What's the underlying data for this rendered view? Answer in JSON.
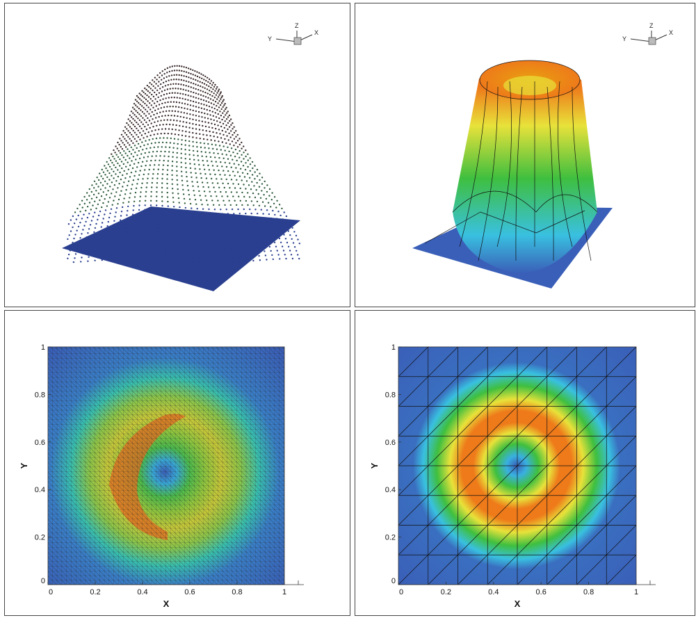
{
  "chart_data": [
    {
      "type": "heatmap",
      "view": "3d-surface-scatter",
      "axis_triad": [
        "X",
        "Y",
        "Z"
      ],
      "grid": true
    },
    {
      "type": "heatmap",
      "view": "3d-surface-shaded",
      "axis_triad": [
        "X",
        "Y",
        "Z"
      ],
      "grid": true
    },
    {
      "type": "heatmap",
      "view": "2d-contour",
      "xlabel": "X",
      "ylabel": "Y",
      "xlim": [
        0,
        1
      ],
      "ylim": [
        0,
        1
      ],
      "x_ticks": [
        "0",
        "0.2",
        "0.4",
        "0.6",
        "0.8",
        "1"
      ],
      "y_ticks": [
        "0",
        "0.2",
        "0.4",
        "0.6",
        "0.8",
        "1"
      ],
      "ring_center": [
        0.5,
        0.5
      ],
      "ring_peak_radius": 0.25,
      "grid": true
    },
    {
      "type": "heatmap",
      "view": "2d-contour",
      "xlabel": "X",
      "ylabel": "Y",
      "xlim": [
        0,
        1
      ],
      "ylim": [
        0,
        1
      ],
      "x_ticks": [
        "0",
        "0.2",
        "0.4",
        "0.6",
        "0.8",
        "1"
      ],
      "y_ticks": [
        "0",
        "0.2",
        "0.4",
        "0.6",
        "0.8",
        "1"
      ],
      "ring_center": [
        0.5,
        0.5
      ],
      "ring_peak_radius": 0.25,
      "grid": true
    }
  ],
  "colors": {
    "low": "#3a5fb8",
    "cyan": "#39c0e0",
    "green": "#3fbf3f",
    "yellow": "#e8e23a",
    "orange": "#ee7a1a",
    "high": "#d8321a"
  }
}
